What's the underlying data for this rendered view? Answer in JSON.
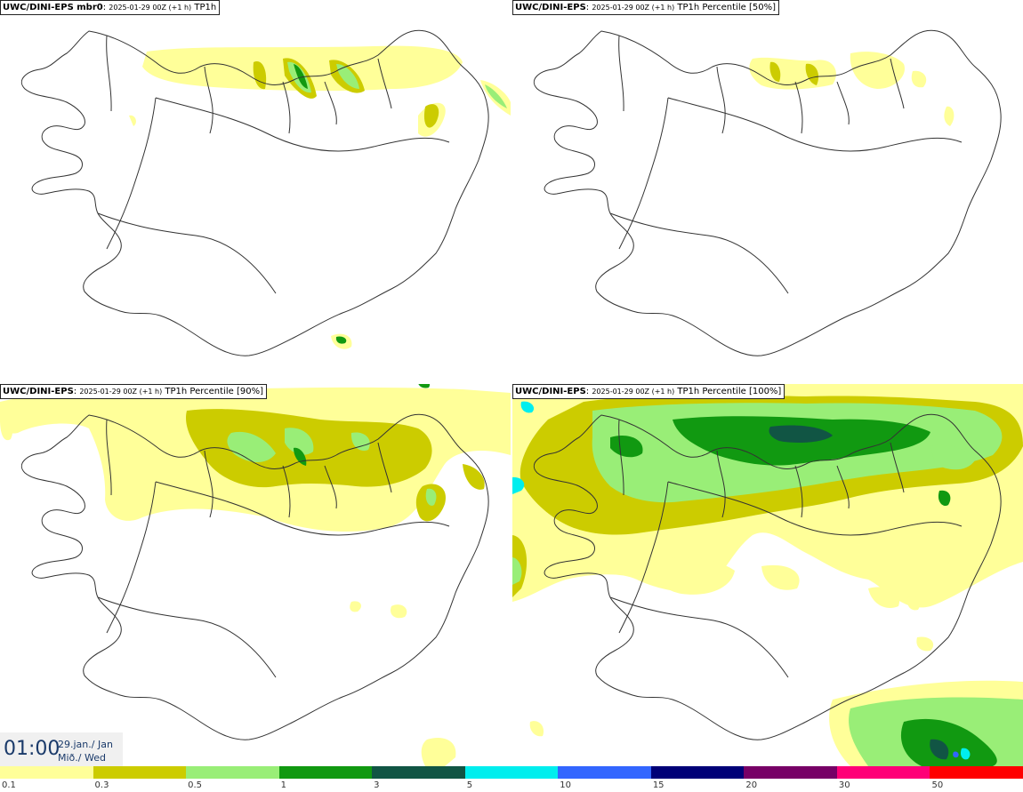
{
  "panels": [
    {
      "model": "UWC/DINI-EPS mbr0",
      "date": "2025-01-29 00Z (+1 h)",
      "field": "TP1h"
    },
    {
      "model": "UWC/DINI-EPS",
      "date": "2025-01-29 00Z (+1 h)",
      "field": "TP1h Percentile [50%]"
    },
    {
      "model": "UWC/DINI-EPS",
      "date": "2025-01-29 00Z (+1 h)",
      "field": "TP1h Percentile [90%]"
    },
    {
      "model": "UWC/DINI-EPS",
      "date": "2025-01-29 00Z (+1 h)",
      "field": "TP1h Percentile [100%]"
    }
  ],
  "timestamp": {
    "time": "01:00",
    "date": "29.jan./ Jan",
    "weekday": "Mið./ Wed"
  },
  "legend": {
    "labels": [
      "0.1",
      "0.3",
      "0.5",
      "1",
      "3",
      "5",
      "10",
      "15",
      "20",
      "30",
      "50"
    ],
    "colors": [
      "#ffff99",
      "#cccc00",
      "#99ee77",
      "#119911",
      "#115544",
      "#00eeee",
      "#3366ff",
      "#000077",
      "#770066",
      "#ff0077",
      "#ff0000"
    ]
  },
  "colors": {
    "outline": "#333333",
    "background": "#ffffff"
  }
}
